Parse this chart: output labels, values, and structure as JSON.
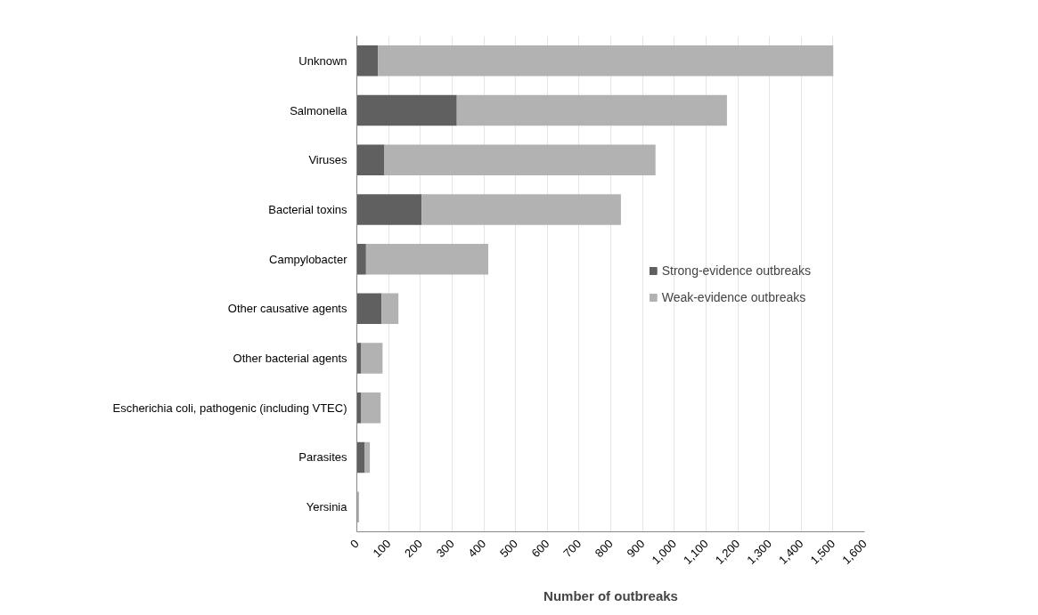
{
  "chart_data": {
    "type": "bar",
    "orientation": "horizontal",
    "stacked": true,
    "xlabel": "Number of outbreaks",
    "categories": [
      "Unknown",
      "Salmonella",
      "Viruses",
      "Bacterial toxins",
      "Campylobacter",
      "Other causative agents",
      "Other bacterial agents",
      "Escherichia coli, pathogenic (including VTEC)",
      "Parasites",
      "Yersinia"
    ],
    "series": [
      {
        "name": "Strong-evidence outbreaks",
        "color": "#606060",
        "values": [
          67,
          315,
          87,
          204,
          29,
          78,
          14,
          14,
          25,
          1
        ]
      },
      {
        "name": "Weak-evidence outbreaks",
        "color": "#b2b2b2",
        "values": [
          1434,
          851,
          854,
          628,
          385,
          53,
          67,
          61,
          16,
          6
        ]
      }
    ],
    "xlim": [
      0,
      1600
    ],
    "xticks": [
      0,
      100,
      200,
      300,
      400,
      500,
      600,
      700,
      800,
      900,
      {
        "value": 1000,
        "label": "1,000"
      },
      {
        "value": 1100,
        "label": "1,100"
      },
      {
        "value": 1200,
        "label": "1,200"
      },
      {
        "value": 1300,
        "label": "1,300"
      },
      {
        "value": 1400,
        "label": "1,400"
      },
      {
        "value": 1500,
        "label": "1,500"
      },
      {
        "value": 1600,
        "label": "1,600"
      }
    ],
    "grid": "x",
    "legend": "center right"
  }
}
